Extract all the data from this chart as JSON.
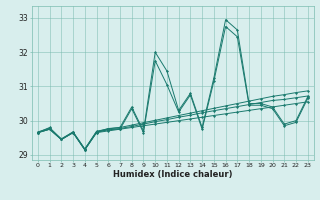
{
  "bg_color": "#d8eeed",
  "grid_color": "#7bbcb0",
  "line_color": "#1a7a6e",
  "xlabel": "Humidex (Indice chaleur)",
  "xlim": [
    -0.5,
    23.5
  ],
  "ylim": [
    28.85,
    33.35
  ],
  "yticks": [
    29,
    30,
    31,
    32,
    33
  ],
  "xticks": [
    0,
    1,
    2,
    3,
    4,
    5,
    6,
    7,
    8,
    9,
    10,
    11,
    12,
    13,
    14,
    15,
    16,
    17,
    18,
    19,
    20,
    21,
    22,
    23
  ],
  "series": [
    [
      29.65,
      29.75,
      29.45,
      29.65,
      29.15,
      29.65,
      29.7,
      29.75,
      29.8,
      29.85,
      29.9,
      29.95,
      30.0,
      30.05,
      30.1,
      30.15,
      30.2,
      30.25,
      30.3,
      30.35,
      30.4,
      30.45,
      30.5,
      30.55
    ],
    [
      29.65,
      29.75,
      29.45,
      29.65,
      29.15,
      29.67,
      29.73,
      29.77,
      29.83,
      29.9,
      29.97,
      30.03,
      30.1,
      30.16,
      30.23,
      30.29,
      30.35,
      30.41,
      30.47,
      30.53,
      30.59,
      30.62,
      30.67,
      30.72
    ],
    [
      29.67,
      29.78,
      29.47,
      29.67,
      29.17,
      29.69,
      29.76,
      29.8,
      29.87,
      29.94,
      30.01,
      30.08,
      30.15,
      30.22,
      30.29,
      30.36,
      30.43,
      30.5,
      30.57,
      30.64,
      30.71,
      30.76,
      30.82,
      30.87
    ],
    [
      29.65,
      29.75,
      29.45,
      29.65,
      29.15,
      29.65,
      29.75,
      29.75,
      30.35,
      29.65,
      31.75,
      31.05,
      30.25,
      30.75,
      29.75,
      31.15,
      32.75,
      32.45,
      30.45,
      30.45,
      30.35,
      29.85,
      29.95,
      30.65
    ],
    [
      29.65,
      29.8,
      29.45,
      29.67,
      29.17,
      29.67,
      29.77,
      29.8,
      30.4,
      29.7,
      32.0,
      31.45,
      30.3,
      30.8,
      29.8,
      31.25,
      32.95,
      32.65,
      30.5,
      30.5,
      30.4,
      29.9,
      30.0,
      30.7
    ]
  ]
}
